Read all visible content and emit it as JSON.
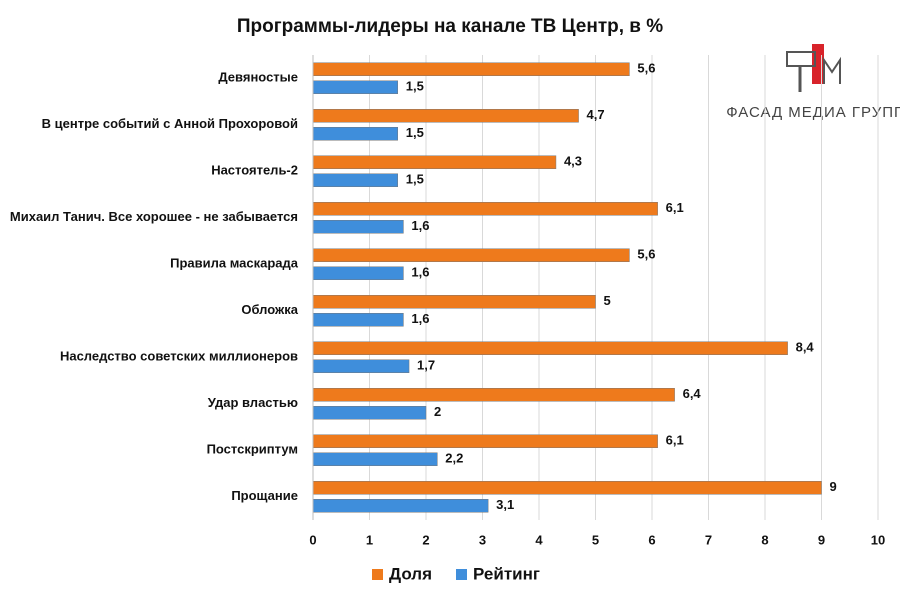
{
  "chart_data": {
    "type": "bar",
    "orientation": "horizontal",
    "title": "Программы-лидеры на канале ТВ Центр, в %",
    "categories": [
      "Девяностые",
      "В центре событий с Анной Прохоровой",
      "Настоятель-2",
      "Михаил Танич. Все хорошее - не забывается",
      "Правила маскарада",
      "Обложка",
      "Наследство советских миллионеров",
      "Удар властью",
      "Постскриптум",
      "Прощание"
    ],
    "series": [
      {
        "name": "Доля",
        "color": "#ee7a1c",
        "values": [
          5.6,
          4.7,
          4.3,
          6.1,
          5.6,
          5,
          8.4,
          6.4,
          6.1,
          9
        ],
        "value_labels": [
          "5,6",
          "4,7",
          "4,3",
          "6,1",
          "5,6",
          "5",
          "8,4",
          "6,4",
          "6,1",
          "9"
        ]
      },
      {
        "name": "Рейтинг",
        "color": "#3f8edb",
        "values": [
          1.5,
          1.5,
          1.5,
          1.6,
          1.6,
          1.6,
          1.7,
          2,
          2.2,
          3.1
        ],
        "value_labels": [
          "1,5",
          "1,5",
          "1,5",
          "1,6",
          "1,6",
          "1,6",
          "1,7",
          "2",
          "2,2",
          "3,1"
        ]
      }
    ],
    "xlim": [
      0,
      10
    ],
    "xticks": [
      0,
      1,
      2,
      3,
      4,
      5,
      6,
      7,
      8,
      9,
      10
    ],
    "grid": true,
    "legend": "bottom"
  },
  "logo": {
    "text": "ФАСАД МЕДИА ГРУПП"
  }
}
